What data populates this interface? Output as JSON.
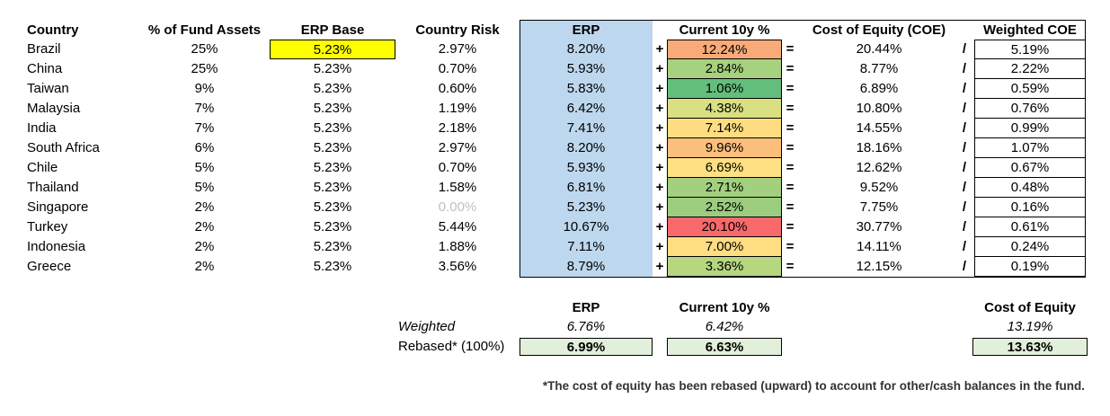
{
  "headers": {
    "country": "Country",
    "fund_assets": "% of Fund Assets",
    "erp_base": "ERP Base",
    "country_risk": "Country Risk",
    "erp": "ERP",
    "current_10y": "Current 10y %",
    "coe": "Cost of Equity (COE)",
    "weighted_coe": "Weighted COE"
  },
  "symbols": {
    "plus": "+",
    "equals": "=",
    "slash": "/"
  },
  "rows": [
    {
      "country": "Brazil",
      "fund": "25%",
      "erp_base": "5.23%",
      "risk": "2.97%",
      "erp": "8.20%",
      "ten": "12.24%",
      "ten_color": "#f8ab79",
      "coe": "20.44%",
      "wcoe": "5.19%"
    },
    {
      "country": "China",
      "fund": "25%",
      "erp_base": "5.23%",
      "risk": "0.70%",
      "erp": "5.93%",
      "ten": "2.84%",
      "ten_color": "#a6d17e",
      "coe": "8.77%",
      "wcoe": "2.22%"
    },
    {
      "country": "Taiwan",
      "fund": "9%",
      "erp_base": "5.23%",
      "risk": "0.60%",
      "erp": "5.83%",
      "ten": "1.06%",
      "ten_color": "#63be7b",
      "coe": "6.89%",
      "wcoe": "0.59%"
    },
    {
      "country": "Malaysia",
      "fund": "7%",
      "erp_base": "5.23%",
      "risk": "1.19%",
      "erp": "6.42%",
      "ten": "4.38%",
      "ten_color": "#d8e082",
      "coe": "10.80%",
      "wcoe": "0.76%"
    },
    {
      "country": "India",
      "fund": "7%",
      "erp_base": "5.23%",
      "risk": "2.18%",
      "erp": "7.41%",
      "ten": "7.14%",
      "ten_color": "#fedd81",
      "coe": "14.55%",
      "wcoe": "0.99%"
    },
    {
      "country": "South Africa",
      "fund": "6%",
      "erp_base": "5.23%",
      "risk": "2.97%",
      "erp": "8.20%",
      "ten": "9.96%",
      "ten_color": "#fbbe7b",
      "coe": "18.16%",
      "wcoe": "1.07%"
    },
    {
      "country": "Chile",
      "fund": "5%",
      "erp_base": "5.23%",
      "risk": "0.70%",
      "erp": "5.93%",
      "ten": "6.69%",
      "ten_color": "#ffe083",
      "coe": "12.62%",
      "wcoe": "0.67%"
    },
    {
      "country": "Thailand",
      "fund": "5%",
      "erp_base": "5.23%",
      "risk": "1.58%",
      "erp": "6.81%",
      "ten": "2.71%",
      "ten_color": "#a3d07e",
      "coe": "9.52%",
      "wcoe": "0.48%"
    },
    {
      "country": "Singapore",
      "fund": "2%",
      "erp_base": "5.23%",
      "risk": "0.00%",
      "erp": "5.23%",
      "ten": "2.52%",
      "ten_color": "#9ccd7e",
      "coe": "7.75%",
      "wcoe": "0.16%"
    },
    {
      "country": "Turkey",
      "fund": "2%",
      "erp_base": "5.23%",
      "risk": "5.44%",
      "erp": "10.67%",
      "ten": "20.10%",
      "ten_color": "#f8696b",
      "coe": "30.77%",
      "wcoe": "0.61%"
    },
    {
      "country": "Indonesia",
      "fund": "2%",
      "erp_base": "5.23%",
      "risk": "1.88%",
      "erp": "7.11%",
      "ten": "7.00%",
      "ten_color": "#fede81",
      "coe": "14.11%",
      "wcoe": "0.24%"
    },
    {
      "country": "Greece",
      "fund": "2%",
      "erp_base": "5.23%",
      "risk": "3.56%",
      "erp": "8.79%",
      "ten": "3.36%",
      "ten_color": "#b6d67f",
      "coe": "12.15%",
      "wcoe": "0.19%"
    }
  ],
  "summary": {
    "erp_header": "ERP",
    "ten_header": "Current 10y %",
    "coe_header": "Cost of Equity",
    "weighted_label": "Weighted",
    "weighted_erp": "6.76%",
    "weighted_ten": "6.42%",
    "weighted_coe": "13.19%",
    "rebased_label": "Rebased* (100%)",
    "rebased_erp": "6.99%",
    "rebased_ten": "6.63%",
    "rebased_coe": "13.63%"
  },
  "footnote": "*The cost of equity has been rebased (upward) to account for other/cash balances in the fund.",
  "colors": {
    "highlight": "#ffff00",
    "erp_column": "#bdd7ee",
    "rebased_fill": "#e2efda"
  }
}
